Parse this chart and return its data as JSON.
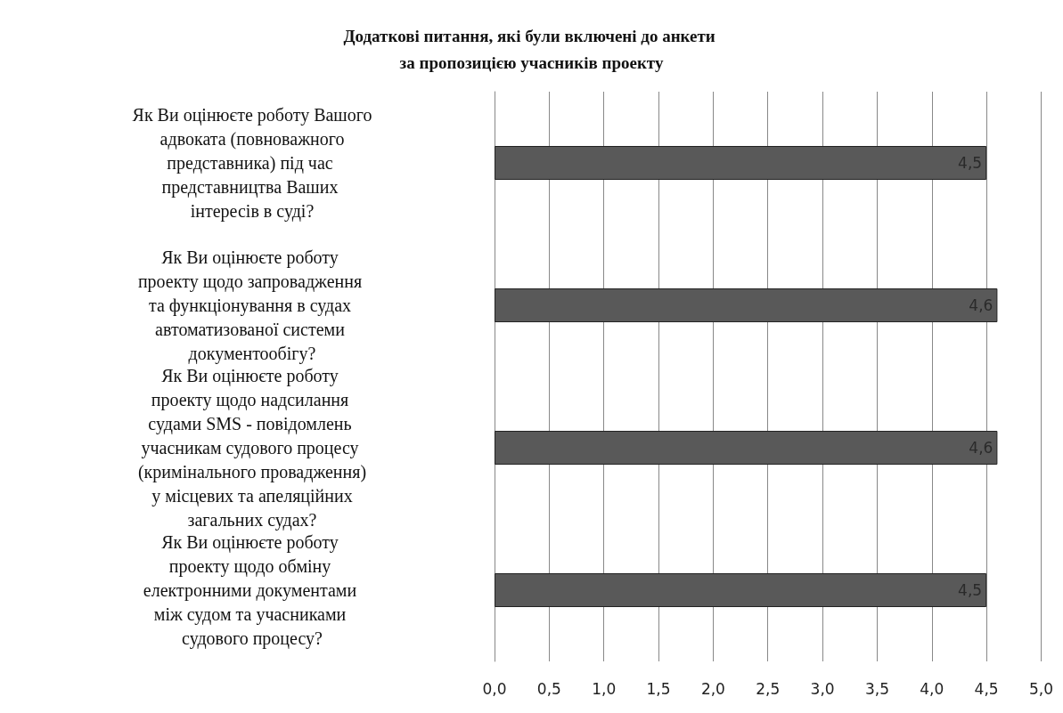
{
  "chart_data": {
    "type": "bar",
    "orientation": "horizontal",
    "title": "Додаткові питання, які були включені до анкети за пропозицією учасників проекту",
    "categories": [
      "Як Ви оцінюєте роботу Вашого адвоката (повноважного представника) під час представництва Ваших інтересів в суді?",
      "Як Ви оцінюєте роботу проекту щодо запровадження та функціонування в судах автоматизованої системи документообігу?",
      "Як Ви оцінюєте роботу проекту щодо надсилання судами SMS - повідомлень учасникам судового процесу (кримінального провадження) у місцевих та апеляційних загальних судах?",
      "Як Ви оцінюєте роботу проекту щодо обміну електронними документами між судом та учасниками судового процесу?"
    ],
    "values": [
      4.5,
      4.6,
      4.6,
      4.5
    ],
    "value_labels": [
      "4,5",
      "4,6",
      "4,6",
      "4,5"
    ],
    "color": "#595959",
    "xlim": [
      0,
      5
    ],
    "xticks": [
      {
        "value": 0,
        "label": "0,0"
      },
      {
        "value": 0.5,
        "label": "0,5"
      },
      {
        "value": 1,
        "label": "1,0"
      },
      {
        "value": 1.5,
        "label": "1,5"
      },
      {
        "value": 2,
        "label": "2,0"
      },
      {
        "value": 2.5,
        "label": "2,5"
      },
      {
        "value": 3,
        "label": "3,0"
      },
      {
        "value": 3.5,
        "label": "3,5"
      },
      {
        "value": 4,
        "label": "4,0"
      },
      {
        "value": 4.5,
        "label": "4,5"
      },
      {
        "value": 5,
        "label": "5,0"
      }
    ],
    "grid": "x",
    "legend": false
  }
}
